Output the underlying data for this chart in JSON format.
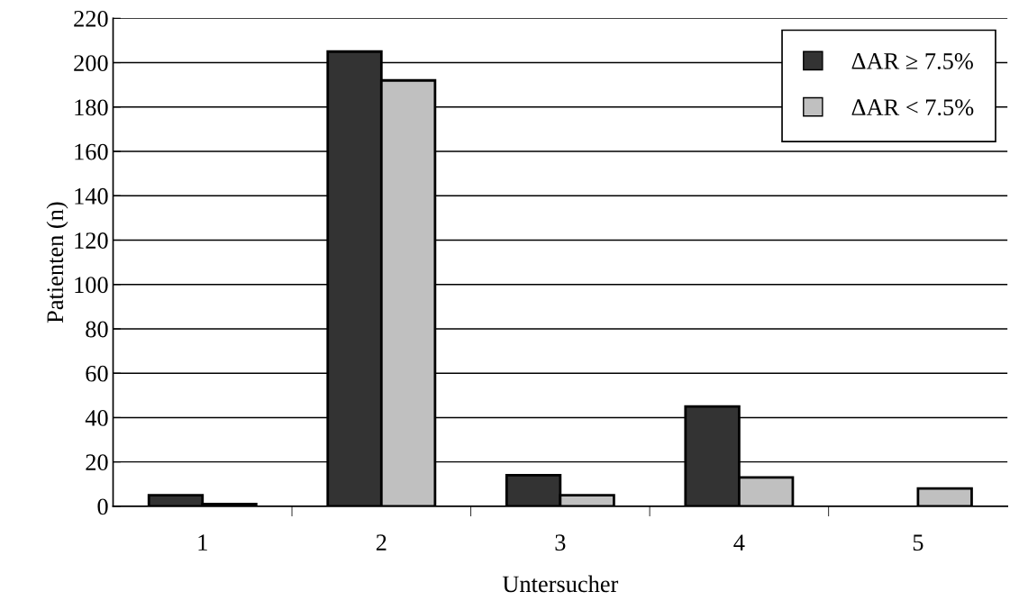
{
  "chart_data": {
    "type": "bar",
    "xlabel": "Untersucher",
    "ylabel": "Patienten (n)",
    "categories": [
      "1",
      "2",
      "3",
      "4",
      "5"
    ],
    "series": [
      {
        "name": "ΔAR ≥ 7.5%",
        "color": "#333333",
        "values": [
          5,
          205,
          14,
          45,
          null
        ]
      },
      {
        "name": "ΔAR < 7.5%",
        "color": "#c0c0c0",
        "values": [
          1,
          192,
          5,
          13,
          8
        ]
      }
    ],
    "ylim": [
      0,
      220
    ],
    "yticks": [
      0,
      20,
      40,
      60,
      80,
      100,
      120,
      140,
      160,
      180,
      200,
      220
    ],
    "grid": "y",
    "legend": "top right"
  }
}
